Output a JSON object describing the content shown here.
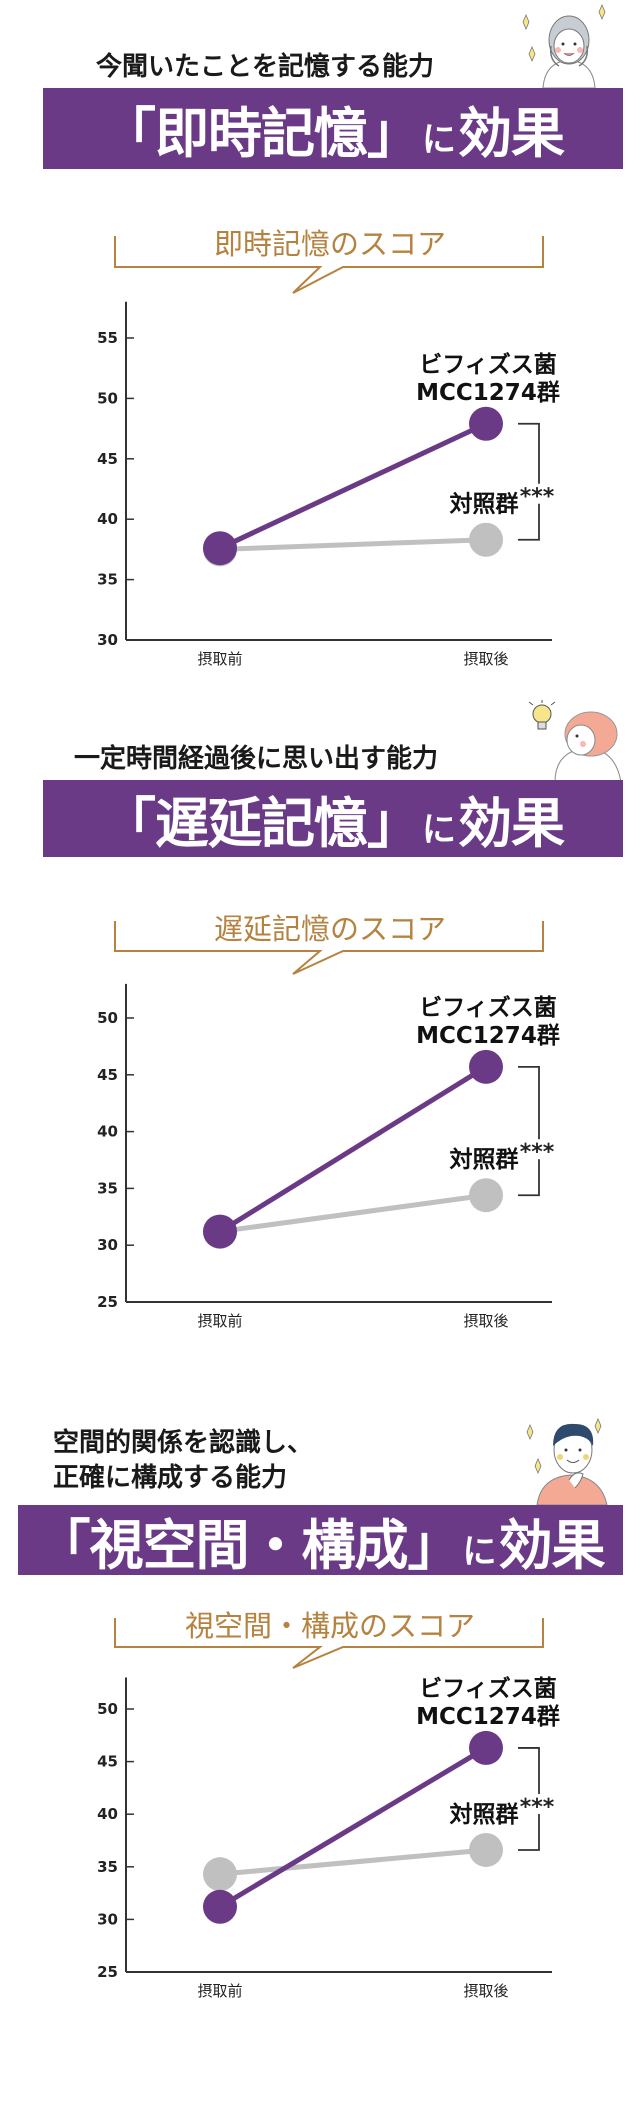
{
  "colors": {
    "accent_purple": "#6b3a87",
    "control_gray": "#c0c0c0",
    "title_brown": "#b5823f",
    "text": "#1a1a1a"
  },
  "sections": [
    {
      "lead_lines": [
        "今聞いたことを記憶する能力"
      ],
      "band": {
        "pre": "「即時記憶」",
        "particle": "に",
        "post": "効果"
      },
      "illustration": "woman-hands-on-cheeks-sparkles"
    },
    {
      "lead_lines": [
        "一定時間経過後に思い出す能力"
      ],
      "band": {
        "pre": "「遅延記憶」",
        "particle": "に",
        "post": "効果"
      },
      "illustration": "woman-lightbulb-idea"
    },
    {
      "lead_lines": [
        "空間的関係を認識し、",
        "正確に構成する能力"
      ],
      "band": {
        "pre": "「視空間・構成」",
        "particle": "に",
        "post": "効果"
      },
      "illustration": "man-hand-on-chin-sparkles"
    }
  ],
  "chart_data": [
    {
      "type": "line",
      "title": "即時記憶のスコア",
      "categories": [
        "摂取前",
        "摂取後"
      ],
      "ylim": [
        30,
        58
      ],
      "yticks": [
        "30",
        "35",
        "40",
        "45",
        "50",
        "55"
      ],
      "grid": false,
      "series": [
        {
          "name_lines": [
            "ビフィズス菌",
            "MCC1274群"
          ],
          "values": [
            37.6,
            47.9
          ],
          "color": "#6b3a87"
        },
        {
          "name_lines": [
            "対照群"
          ],
          "values": [
            37.5,
            38.3
          ],
          "color": "#c0c0c0"
        }
      ],
      "annotation": "***"
    },
    {
      "type": "line",
      "title": "遅延記憶のスコア",
      "categories": [
        "摂取前",
        "摂取後"
      ],
      "ylim": [
        25,
        53
      ],
      "yticks": [
        "25",
        "30",
        "35",
        "40",
        "45",
        "50"
      ],
      "grid": false,
      "series": [
        {
          "name_lines": [
            "ビフィズス菌",
            "MCC1274群"
          ],
          "values": [
            31.2,
            45.7
          ],
          "color": "#6b3a87"
        },
        {
          "name_lines": [
            "対照群"
          ],
          "values": [
            31.2,
            34.4
          ],
          "color": "#c0c0c0"
        }
      ],
      "annotation": "***"
    },
    {
      "type": "line",
      "title": "視空間・構成のスコア",
      "categories": [
        "摂取前",
        "摂取後"
      ],
      "ylim": [
        25,
        53
      ],
      "yticks": [
        "25",
        "30",
        "35",
        "40",
        "45",
        "50"
      ],
      "grid": false,
      "series": [
        {
          "name_lines": [
            "ビフィズス菌",
            "MCC1274群"
          ],
          "values": [
            31.2,
            46.3
          ],
          "color": "#6b3a87"
        },
        {
          "name_lines": [
            "対照群"
          ],
          "values": [
            34.3,
            36.6
          ],
          "color": "#c0c0c0"
        }
      ],
      "annotation": "***"
    }
  ]
}
